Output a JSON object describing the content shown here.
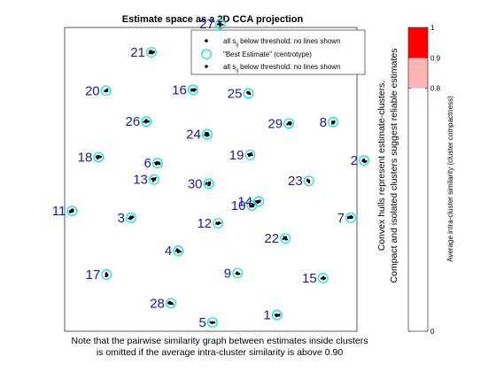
{
  "chart_data": {
    "type": "scatter",
    "title": "Estimate space as a 2D CCA projection",
    "xlim": [
      0,
      1
    ],
    "ylim": [
      0,
      1
    ],
    "grid": false,
    "legend": {
      "placement": "top-right",
      "entries": [
        {
          "label_main": "all s",
          "label_sub": "ij",
          "label_rest": " below threshold: no lines shown",
          "marker": "black-dot"
        },
        {
          "label_main": "\"Best Estimate\" (centrotype)",
          "label_sub": "",
          "label_rest": "",
          "marker": "cyan-circle"
        },
        {
          "label_main": "all s",
          "label_sub": "ij",
          "label_rest": " below threshold: no lines shown",
          "marker": "black-dot"
        }
      ]
    },
    "clusters": [
      {
        "id": "1",
        "x": 0.705,
        "y": 0.04
      },
      {
        "id": "2",
        "x": 1.0,
        "y": 0.605
      },
      {
        "id": "3",
        "x": 0.21,
        "y": 0.395
      },
      {
        "id": "4",
        "x": 0.37,
        "y": 0.275
      },
      {
        "id": "5",
        "x": 0.486,
        "y": 0.013
      },
      {
        "id": "6",
        "x": 0.3,
        "y": 0.595
      },
      {
        "id": "7",
        "x": 0.955,
        "y": 0.395
      },
      {
        "id": "8",
        "x": 0.895,
        "y": 0.745
      },
      {
        "id": "9",
        "x": 0.571,
        "y": 0.193
      },
      {
        "id": "10",
        "x": 0.62,
        "y": 0.44
      },
      {
        "id": "11",
        "x": 0.01,
        "y": 0.42
      },
      {
        "id": "12",
        "x": 0.505,
        "y": 0.375
      },
      {
        "id": "13",
        "x": 0.288,
        "y": 0.535
      },
      {
        "id": "14",
        "x": 0.643,
        "y": 0.455
      },
      {
        "id": "15",
        "x": 0.861,
        "y": 0.175
      },
      {
        "id": "16",
        "x": 0.42,
        "y": 0.863
      },
      {
        "id": "17",
        "x": 0.127,
        "y": 0.188
      },
      {
        "id": "18",
        "x": 0.1,
        "y": 0.617
      },
      {
        "id": "19",
        "x": 0.614,
        "y": 0.625
      },
      {
        "id": "20",
        "x": 0.125,
        "y": 0.86
      },
      {
        "id": "21",
        "x": 0.279,
        "y": 1.0
      },
      {
        "id": "22",
        "x": 0.733,
        "y": 0.32
      },
      {
        "id": "23",
        "x": 0.813,
        "y": 0.53
      },
      {
        "id": "24",
        "x": 0.468,
        "y": 0.7
      },
      {
        "id": "25",
        "x": 0.608,
        "y": 0.85
      },
      {
        "id": "26",
        "x": 0.262,
        "y": 0.747
      },
      {
        "id": "27",
        "x": 0.513,
        "y": 1.103
      },
      {
        "id": "28",
        "x": 0.345,
        "y": 0.083
      },
      {
        "id": "29",
        "x": 0.745,
        "y": 0.74
      },
      {
        "id": "30",
        "x": 0.473,
        "y": 0.52
      }
    ],
    "right_ylabel_line1": "Convex hulls represent estimate-clusters.",
    "right_ylabel_line2": "Compact and isolated clusters suggest reliable estimates",
    "bottom_note_line1": "Note that the pairwise similarity graph between estimates inside clusters",
    "bottom_note_line2": "is omitted if the average intra-cluster similarity is above 0.90",
    "colorbar": {
      "label": "Average intra-cluster similarity (cluster compactness)",
      "ticks": [
        "0",
        "0.8",
        "0.9",
        "1"
      ],
      "bands": [
        {
          "from": 0.0,
          "to": 0.8,
          "color": "#ffffff"
        },
        {
          "from": 0.8,
          "to": 0.9,
          "color": "#ffb3b3"
        },
        {
          "from": 0.9,
          "to": 1.0,
          "color": "#ff0000"
        }
      ]
    },
    "colors": {
      "label": "#1a1aa6",
      "centrotype": "#00e5e5",
      "points": "#000000"
    }
  }
}
